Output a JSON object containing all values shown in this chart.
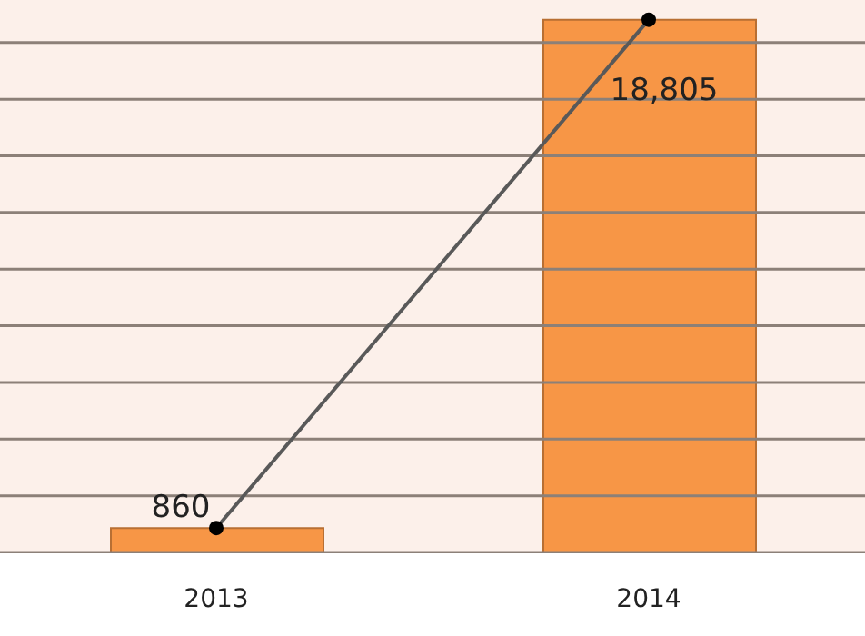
{
  "chart_data": {
    "type": "bar",
    "categories": [
      "2013",
      "2014"
    ],
    "series": [
      {
        "color": "#f79646",
        "values": [
          860,
          18805
        ],
        "value_labels": [
          "860",
          "18,805"
        ]
      },
      {
        "type": "line",
        "color": "#595959",
        "values": [
          860,
          18805
        ],
        "marker": "circle"
      }
    ],
    "ylim": [
      0,
      19500
    ],
    "yticks": [
      {
        "value": 0,
        "label": null
      },
      {
        "value": 2000,
        "label": null
      },
      {
        "value": 4000,
        "label": null
      },
      {
        "value": 6000,
        "label": null
      },
      {
        "value": 8000,
        "label": null
      },
      {
        "value": 10000,
        "label": null
      },
      {
        "value": 12000,
        "label": null
      },
      {
        "value": 14000,
        "label": null
      },
      {
        "value": 16000,
        "label": null
      },
      {
        "value": 18000,
        "label": null
      }
    ],
    "grid": "y",
    "tick_labels": "x"
  }
}
